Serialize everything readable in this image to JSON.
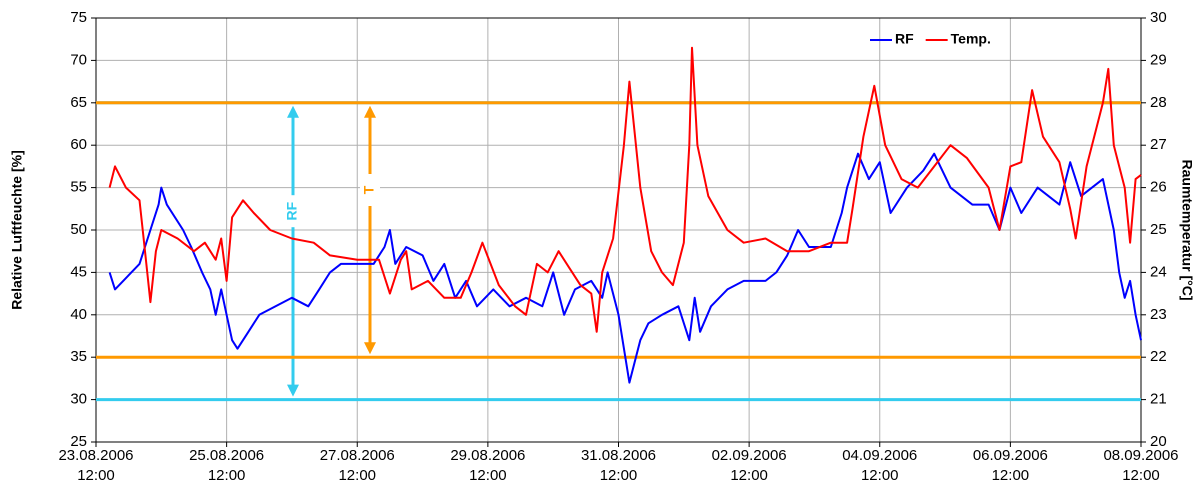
{
  "chart_data": {
    "type": "line",
    "y_label": "Relative Luftfeuchte [%]",
    "y2_label": "Raumtemperatur [°C]",
    "xlim": [
      "23.08.2006 12:00",
      "08.09.2006 12:00"
    ],
    "xticks": [
      "23.08.2006 12:00",
      "25.08.2006 12:00",
      "27.08.2006 12:00",
      "29.08.2006 12:00",
      "31.08.2006 12:00",
      "02.09.2006 12:00",
      "04.09.2006 12:00",
      "06.09.2006 12:00",
      "08.09.2006 12:00"
    ],
    "ylim": [
      25,
      75
    ],
    "yticks": [
      25,
      30,
      35,
      40,
      45,
      50,
      55,
      60,
      65,
      70,
      75
    ],
    "y2lim": [
      20,
      30
    ],
    "y2ticks": [
      20,
      21,
      22,
      23,
      24,
      25,
      26,
      27,
      28,
      29,
      30
    ],
    "grid": true,
    "legend": "upper right",
    "series": [
      {
        "name": "RF",
        "color": "#0000ff",
        "axis": "y",
        "x": [
          "23.08.2006 17:00",
          "23.08.2006 19:00",
          "23.08.2006 22:00",
          "24.08.2006 04:00",
          "24.08.2006 08:00",
          "24.08.2006 11:00",
          "24.08.2006 12:00",
          "24.08.2006 14:00",
          "24.08.2006 20:00",
          "24.08.2006 23:00",
          "25.08.2006 03:00",
          "25.08.2006 06:00",
          "25.08.2006 08:00",
          "25.08.2006 10:00",
          "25.08.2006 12:00",
          "25.08.2006 14:00",
          "25.08.2006 16:00",
          "25.08.2006 20:00",
          "26.08.2006 00:00",
          "26.08.2006 06:00",
          "26.08.2006 12:00",
          "26.08.2006 18:00",
          "26.08.2006 22:00",
          "27.08.2006 02:00",
          "27.08.2006 06:00",
          "27.08.2006 18:00",
          "27.08.2006 22:00",
          "28.08.2006 00:00",
          "28.08.2006 02:00",
          "28.08.2006 06:00",
          "28.08.2006 12:00",
          "28.08.2006 16:00",
          "28.08.2006 20:00",
          "29.08.2006 00:00",
          "29.08.2006 04:00",
          "29.08.2006 08:00",
          "29.08.2006 14:00",
          "29.08.2006 20:00",
          "30.08.2006 02:00",
          "30.08.2006 08:00",
          "30.08.2006 12:00",
          "30.08.2006 16:00",
          "30.08.2006 20:00",
          "31.08.2006 02:00",
          "31.08.2006 06:00",
          "31.08.2006 08:00",
          "31.08.2006 12:00",
          "31.08.2006 16:00",
          "31.08.2006 20:00",
          "31.08.2006 23:00",
          "01.09.2006 04:00",
          "01.09.2006 10:00",
          "01.09.2006 14:00",
          "01.09.2006 16:00",
          "01.09.2006 18:00",
          "01.09.2006 22:00",
          "02.09.2006 04:00",
          "02.09.2006 10:00",
          "02.09.2006 18:00",
          "02.09.2006 22:00",
          "03.09.2006 02:00",
          "03.09.2006 06:00",
          "03.09.2006 10:00",
          "03.09.2006 18:00",
          "03.09.2006 22:00",
          "04.09.2006 00:00",
          "04.09.2006 04:00",
          "04.09.2006 08:00",
          "04.09.2006 12:00",
          "04.09.2006 16:00",
          "04.09.2006 22:00",
          "05.09.2006 04:00",
          "05.09.2006 08:00",
          "05.09.2006 14:00",
          "05.09.2006 22:00",
          "06.09.2006 04:00",
          "06.09.2006 08:00",
          "06.09.2006 12:00",
          "06.09.2006 16:00",
          "06.09.2006 22:00",
          "07.09.2006 06:00",
          "07.09.2006 10:00",
          "07.09.2006 14:00",
          "07.09.2006 22:00",
          "08.09.2006 02:00",
          "08.09.2006 04:00",
          "08.09.2006 06:00",
          "08.09.2006 08:00",
          "08.09.2006 10:00",
          "08.09.2006 12:00"
        ],
        "values": [
          45,
          43,
          44,
          46,
          50,
          53,
          55,
          53,
          50,
          48,
          45,
          43,
          40,
          43,
          40,
          37,
          36,
          38,
          40,
          41,
          42,
          41,
          43,
          45,
          46,
          46,
          48,
          50,
          46,
          48,
          47,
          44,
          46,
          42,
          44,
          41,
          43,
          41,
          42,
          41,
          45,
          40,
          43,
          44,
          42,
          45,
          40,
          32,
          37,
          39,
          40,
          41,
          37,
          42,
          38,
          41,
          43,
          44,
          44,
          45,
          47,
          50,
          48,
          48,
          52,
          55,
          59,
          56,
          58,
          52,
          55,
          57,
          59,
          55,
          53,
          53,
          50,
          55,
          52,
          55,
          53,
          58,
          54,
          56,
          50,
          45,
          42,
          44,
          40,
          37
        ]
      },
      {
        "name": "Temp.",
        "color": "#ff0000",
        "axis": "y2",
        "x": [
          "23.08.2006 17:00",
          "23.08.2006 19:00",
          "23.08.2006 23:00",
          "24.08.2006 04:00",
          "24.08.2006 06:00",
          "24.08.2006 08:00",
          "24.08.2006 10:00",
          "24.08.2006 12:00",
          "24.08.2006 18:00",
          "25.08.2006 00:00",
          "25.08.2006 04:00",
          "25.08.2006 08:00",
          "25.08.2006 10:00",
          "25.08.2006 12:00",
          "25.08.2006 14:00",
          "25.08.2006 18:00",
          "25.08.2006 22:00",
          "26.08.2006 04:00",
          "26.08.2006 12:00",
          "26.08.2006 20:00",
          "27.08.2006 02:00",
          "27.08.2006 12:00",
          "27.08.2006 20:00",
          "28.08.2006 00:00",
          "28.08.2006 04:00",
          "28.08.2006 06:00",
          "28.08.2006 08:00",
          "28.08.2006 14:00",
          "28.08.2006 20:00",
          "29.08.2006 02:00",
          "29.08.2006 06:00",
          "29.08.2006 10:00",
          "29.08.2006 16:00",
          "29.08.2006 22:00",
          "30.08.2006 02:00",
          "30.08.2006 06:00",
          "30.08.2006 10:00",
          "30.08.2006 14:00",
          "30.08.2006 18:00",
          "30.08.2006 22:00",
          "31.08.2006 02:00",
          "31.08.2006 04:00",
          "31.08.2006 06:00",
          "31.08.2006 10:00",
          "31.08.2006 14:00",
          "31.08.2006 16:00",
          "31.08.2006 20:00",
          "01.09.2006 00:00",
          "01.09.2006 04:00",
          "01.09.2006 08:00",
          "01.09.2006 12:00",
          "01.09.2006 14:00",
          "01.09.2006 15:00",
          "01.09.2006 17:00",
          "01.09.2006 21:00",
          "02.09.2006 04:00",
          "02.09.2006 10:00",
          "02.09.2006 18:00",
          "03.09.2006 02:00",
          "03.09.2006 10:00",
          "03.09.2006 18:00",
          "04.09.2006 00:00",
          "04.09.2006 02:00",
          "04.09.2006 06:00",
          "04.09.2006 10:00",
          "04.09.2006 14:00",
          "04.09.2006 20:00",
          "05.09.2006 02:00",
          "05.09.2006 08:00",
          "05.09.2006 14:00",
          "05.09.2006 20:00",
          "06.09.2006 04:00",
          "06.09.2006 08:00",
          "06.09.2006 12:00",
          "06.09.2006 16:00",
          "06.09.2006 20:00",
          "07.09.2006 00:00",
          "07.09.2006 06:00",
          "07.09.2006 10:00",
          "07.09.2006 12:00",
          "07.09.2006 16:00",
          "07.09.2006 22:00",
          "08.09.2006 00:00",
          "08.09.2006 02:00",
          "08.09.2006 04:00",
          "08.09.2006 06:00",
          "08.09.2006 08:00",
          "08.09.2006 10:00",
          "08.09.2006 12:00"
        ],
        "values": [
          26.0,
          26.5,
          26.0,
          25.7,
          24.5,
          23.3,
          24.5,
          25.0,
          24.8,
          24.5,
          24.7,
          24.3,
          24.8,
          23.8,
          25.3,
          25.7,
          25.4,
          25.0,
          24.8,
          24.7,
          24.4,
          24.3,
          24.3,
          23.5,
          24.3,
          24.5,
          23.6,
          23.8,
          23.4,
          23.4,
          24.0,
          24.7,
          23.7,
          23.2,
          23.0,
          24.2,
          24.0,
          24.5,
          24.1,
          23.7,
          23.5,
          22.6,
          24.0,
          24.8,
          27.0,
          28.5,
          26.0,
          24.5,
          24.0,
          23.7,
          24.7,
          27.0,
          29.3,
          27.0,
          25.8,
          25.0,
          24.7,
          24.8,
          24.5,
          24.5,
          24.7,
          24.7,
          25.5,
          27.2,
          28.4,
          27.0,
          26.2,
          26.0,
          26.5,
          27.0,
          26.7,
          26.0,
          25.0,
          26.5,
          26.6,
          28.3,
          27.2,
          26.6,
          25.5,
          24.8,
          26.5,
          28.0,
          28.8,
          27.0,
          26.5,
          26.0,
          24.7,
          26.2,
          26.3
        ]
      }
    ],
    "reference_lines": [
      {
        "label": "RF",
        "axis": "y",
        "values": [
          30,
          65
        ],
        "color": "#33ccee"
      },
      {
        "label": "T",
        "axis": "y2",
        "values": [
          22,
          28
        ],
        "color": "#ff9900"
      }
    ]
  }
}
